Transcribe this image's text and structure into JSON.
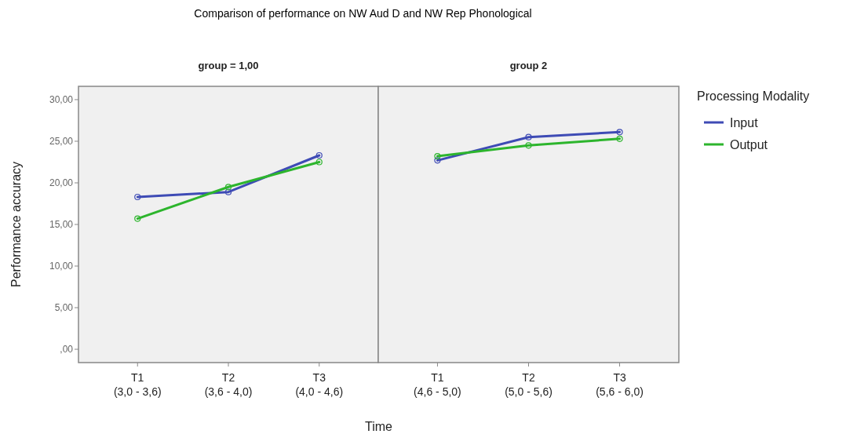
{
  "chart_data": [
    {
      "type": "line",
      "title": "Comparison of performance on NW Aud D and NW Rep Phonological",
      "subtitle": "group = 1,00",
      "xlabel": "Time",
      "ylabel": "Performance accuracy",
      "categories": [
        "T1\n(3,0 - 3,6)",
        "T2\n(3,6 - 4,0)",
        "T3\n(4,0 - 4,6)"
      ],
      "series": [
        {
          "color": "#3e4bb5",
          "values": [
            18.3,
            18.9,
            23.3
          ]
        },
        {
          "color": "#2db52d",
          "values": [
            15.7,
            19.5,
            22.5
          ]
        }
      ],
      "ylim": [
        -1.6,
        31.6
      ],
      "yticks": [
        {
          "value": 0,
          "label": ",00"
        },
        {
          "value": 5,
          "label": "5,00"
        },
        {
          "value": 10,
          "label": "10,00"
        },
        {
          "value": 15,
          "label": "15,00"
        },
        {
          "value": 20,
          "label": "20,00"
        },
        {
          "value": 25,
          "label": "25,00"
        },
        {
          "value": 30,
          "label": "30,00"
        }
      ],
      "marker": "circle",
      "legend": false
    },
    {
      "type": "line",
      "subtitle": "group  2",
      "legend_title": "Processing Modality",
      "categories": [
        "T1\n(4,6 - 5,0)",
        "T2\n(5,0 - 5,6)",
        "T3\n(5,6 - 6,0)"
      ],
      "series": [
        {
          "name": "Input",
          "color": "#3e4bb5",
          "values": [
            22.7,
            25.5,
            26.1
          ]
        },
        {
          "name": "Output",
          "color": "#2db52d",
          "values": [
            23.2,
            24.5,
            25.3
          ]
        }
      ],
      "ylim": [
        -1.6,
        31.6
      ],
      "tick_labels": "x",
      "marker": "circle",
      "legend": "right"
    }
  ]
}
